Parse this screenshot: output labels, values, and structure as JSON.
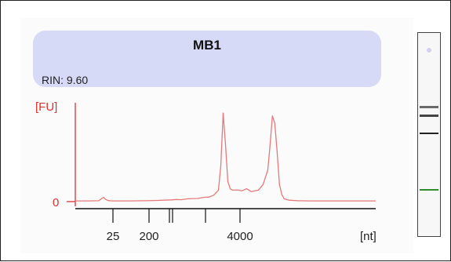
{
  "sample": {
    "title": "MB1",
    "rin": "RIN: 9.60"
  },
  "colors": {
    "trace": "#e27a7a",
    "axis_y": "#e03030",
    "header_fill": "#d7daf6",
    "marker_band": "#2e8b2e"
  },
  "chart_data": {
    "type": "line",
    "title": "MB1",
    "xlabel": "[nt]",
    "ylabel": "[FU]",
    "x_tick_labels": [
      "25",
      "200",
      "4000"
    ],
    "x_tick_marks_unlabeled": 4,
    "y_tick_labels": [
      "0"
    ],
    "grid": false,
    "series": [
      {
        "x": [
          0,
          12,
          20,
          24,
          26,
          28,
          32,
          45,
          60,
          70,
          82,
          86,
          90,
          96,
          104,
          110,
          114,
          118,
          122,
          124,
          126,
          128,
          130,
          132,
          134,
          138,
          142,
          146,
          150,
          156,
          160,
          164,
          166,
          168,
          170,
          172,
          174,
          176,
          178,
          182,
          190,
          200,
          212,
          224,
          236,
          248,
          256
        ],
        "y": [
          0.5,
          0.5,
          0.6,
          3.0,
          1.5,
          0.7,
          0.5,
          0.5,
          0.6,
          0.8,
          1.2,
          1.5,
          1.3,
          2.0,
          2.2,
          3.0,
          3.2,
          4.5,
          8.0,
          25,
          62,
          40,
          14,
          9,
          8,
          8.2,
          7.5,
          9.0,
          7.0,
          8.0,
          12,
          22,
          40,
          60,
          55,
          35,
          12,
          5,
          2.0,
          1.0,
          0.6,
          0.5,
          0.5,
          0.5,
          0.5,
          0.5,
          0.5
        ]
      }
    ]
  },
  "gel": {
    "bands": [
      {
        "label_pos": 0.36,
        "thickness": 3,
        "color": "#6a6a6a"
      },
      {
        "label_pos": 0.4,
        "thickness": 3,
        "color": "#444444"
      },
      {
        "label_pos": 0.49,
        "thickness": 2,
        "color": "#222222"
      },
      {
        "label_pos": 0.77,
        "thickness": 2,
        "color": "#2e8b2e"
      }
    ]
  }
}
